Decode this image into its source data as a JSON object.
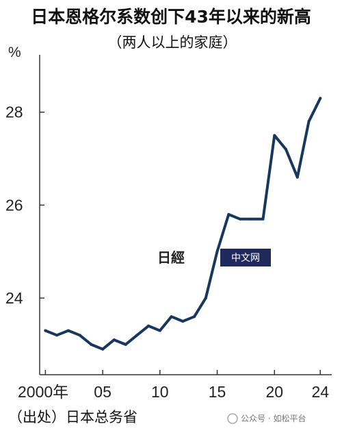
{
  "chart_data": {
    "type": "line",
    "title": "日本恩格尔系数创下43年以来的新高",
    "subtitle": "（两人以上的家庭）",
    "ylabel": "%",
    "xlabel": "",
    "ylim": [
      22.35,
      29.5
    ],
    "xlim": [
      1999.5,
      2025
    ],
    "yticks": [
      24,
      26,
      28
    ],
    "xticks": [
      {
        "value": 2000,
        "label": "2000年"
      },
      {
        "value": 2005,
        "label": "05"
      },
      {
        "value": 2010,
        "label": "10"
      },
      {
        "value": 2015,
        "label": "15"
      },
      {
        "value": 2020,
        "label": "20"
      },
      {
        "value": 2024,
        "label": "24"
      }
    ],
    "grid": false,
    "color": "#17375e",
    "series": [
      {
        "x": [
          2000,
          2001,
          2002,
          2003,
          2004,
          2005,
          2006,
          2007,
          2008,
          2009,
          2010,
          2011,
          2012,
          2013,
          2014,
          2015,
          2016,
          2017,
          2018,
          2019,
          2020,
          2021,
          2022,
          2023,
          2024
        ],
        "values": [
          23.3,
          23.2,
          23.3,
          23.2,
          23.0,
          22.9,
          23.1,
          23.0,
          23.2,
          23.4,
          23.3,
          23.6,
          23.5,
          23.6,
          24.0,
          25.0,
          25.8,
          25.7,
          25.7,
          25.7,
          27.5,
          27.2,
          26.6,
          27.8,
          28.3
        ]
      }
    ]
  },
  "source": "（出处）日本总务省",
  "watermark": {
    "logo_text": "日經",
    "text": "中文网"
  },
  "credit": "公众号 · 如松平台"
}
